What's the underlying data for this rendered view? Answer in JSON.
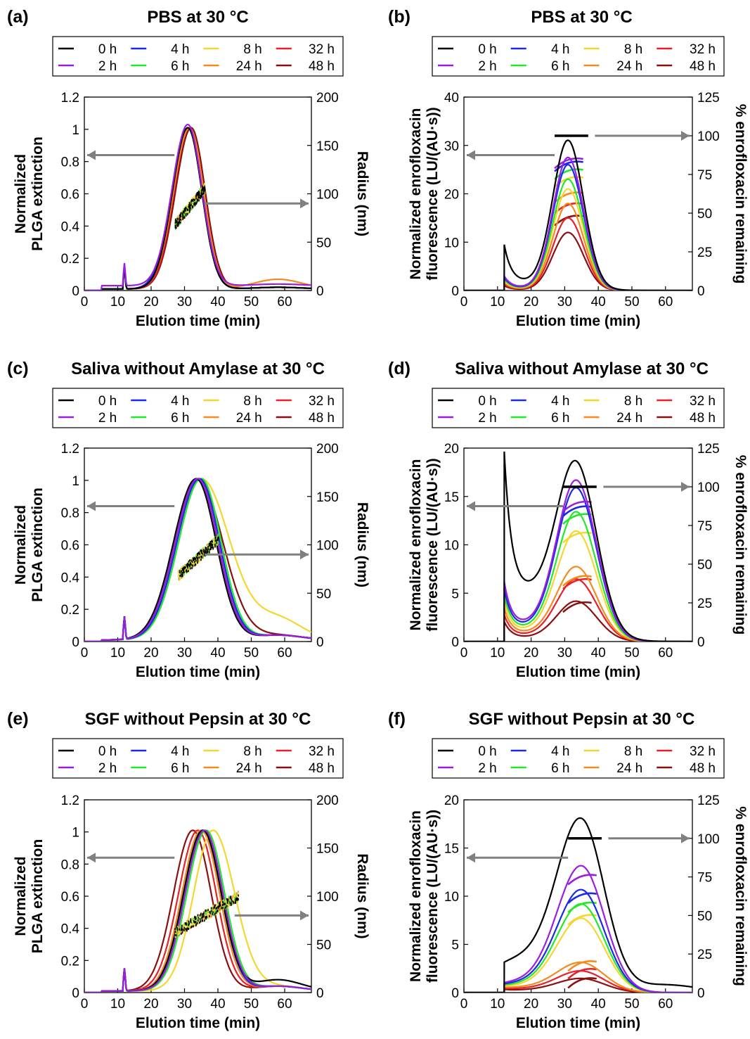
{
  "figure": {
    "legend": {
      "items": [
        "0 h",
        "4 h",
        "8 h",
        "32 h",
        "2 h",
        "6 h",
        "24 h",
        "48 h"
      ]
    },
    "colors": {
      "0 h": "#000000",
      "2 h": "#9a1ee0",
      "4 h": "#1a2ae8",
      "6 h": "#22e82a",
      "8 h": "#f5d630",
      "24 h": "#f58a1e",
      "32 h": "#e8202a",
      "48 h": "#8a1010"
    }
  },
  "chart_data": [
    {
      "panel": "(a)",
      "type": "line",
      "title": "PBS at 30 °C",
      "xlabel": "Elution time (min)",
      "ylabel": [
        "Normalized",
        "PLGA extinction"
      ],
      "y2label": "Radius (nm)",
      "xlim": [
        0,
        68
      ],
      "xticks": [
        0,
        10,
        20,
        30,
        40,
        50,
        60
      ],
      "ylim": [
        0,
        1.2
      ],
      "yticks": [
        0,
        0.2,
        0.4,
        0.6,
        0.8,
        1,
        1.2
      ],
      "y2lim": [
        0,
        200
      ],
      "y2ticks": [
        0,
        50,
        100,
        150,
        200
      ],
      "peak_x": [
        31,
        31,
        31,
        31,
        31,
        31.5,
        31.5,
        32
      ],
      "series_labels": [
        "0 h",
        "2 h",
        "4 h",
        "6 h",
        "8 h",
        "24 h",
        "32 h",
        "48 h"
      ],
      "radius_nm_range": [
        65,
        110
      ],
      "radius_x_range": [
        27,
        36
      ],
      "arrows": {
        "left": {
          "x": 28,
          "y": 0.84,
          "points": "left-axis"
        },
        "right": {
          "x": 38,
          "y": 0.54,
          "points": "right-axis"
        }
      }
    },
    {
      "panel": "(b)",
      "type": "line",
      "title": "PBS at 30 °C",
      "xlabel": "Elution time (min)",
      "ylabel": [
        "Normalized enrofloxacin",
        "fluorescence (LU/(AU·s))"
      ],
      "y2label": "% enrofloxacin remaining",
      "xlim": [
        0,
        68
      ],
      "xticks": [
        0,
        10,
        20,
        30,
        40,
        50,
        60
      ],
      "ylim": [
        0,
        40
      ],
      "yticks": [
        0,
        10,
        20,
        30,
        40
      ],
      "y2lim": [
        0,
        125
      ],
      "y2ticks": [
        0,
        25,
        50,
        75,
        100,
        125
      ],
      "series_labels": [
        "0 h",
        "2 h",
        "4 h",
        "6 h",
        "8 h",
        "24 h",
        "32 h",
        "48 h"
      ],
      "peak_heights": [
        31,
        27.5,
        26,
        23,
        21,
        18,
        15,
        12
      ],
      "percent_remaining": [
        100,
        85,
        83,
        78,
        73,
        63,
        56,
        48
      ]
    },
    {
      "panel": "(c)",
      "type": "line",
      "title": "Saliva without Amylase at 30 °C",
      "xlabel": "Elution time (min)",
      "ylabel": [
        "Normalized",
        "PLGA extinction"
      ],
      "y2label": "Radius (nm)",
      "xlim": [
        0,
        68
      ],
      "xticks": [
        0,
        10,
        20,
        30,
        40,
        50,
        60
      ],
      "ylim": [
        0,
        1.2
      ],
      "yticks": [
        0,
        0.2,
        0.4,
        0.6,
        0.8,
        1,
        1.2
      ],
      "y2lim": [
        0,
        200
      ],
      "y2ticks": [
        0,
        50,
        100,
        150,
        200
      ],
      "series_labels": [
        "0 h",
        "2 h",
        "4 h",
        "6 h",
        "8 h",
        "24 h",
        "32 h",
        "48 h"
      ],
      "peak_x": [
        33.5,
        34,
        34.5,
        35,
        35,
        34,
        34,
        34
      ]
    },
    {
      "panel": "(d)",
      "type": "line",
      "title": "Saliva without Amylase at 30 °C",
      "xlabel": "Elution time (min)",
      "ylabel": [
        "Normalized enrofloxacin",
        "fluorescence (LU/(AU·s))"
      ],
      "y2label": "% enrofloxacin remaining",
      "xlim": [
        0,
        68
      ],
      "xticks": [
        0,
        10,
        20,
        30,
        40,
        50,
        60
      ],
      "ylim": [
        0,
        20
      ],
      "yticks": [
        0,
        5,
        10,
        15,
        20
      ],
      "y2lim": [
        0,
        125
      ],
      "y2ticks": [
        0,
        25,
        50,
        75,
        100,
        125
      ],
      "series_labels": [
        "0 h",
        "2 h",
        "4 h",
        "6 h",
        "8 h",
        "24 h",
        "32 h",
        "48 h"
      ],
      "peak_heights": [
        19,
        16.8,
        16,
        13.5,
        11.5,
        7.8,
        6.5,
        4.2
      ],
      "percent_remaining": [
        100,
        90,
        87,
        82,
        70,
        42,
        40,
        25
      ]
    },
    {
      "panel": "(e)",
      "type": "line",
      "title": "SGF without Pepsin at 30 °C",
      "xlabel": "Elution time (min)",
      "ylabel": [
        "Normalized",
        "PLGA extinction"
      ],
      "y2label": "Radius (nm)",
      "xlim": [
        0,
        68
      ],
      "xticks": [
        0,
        10,
        20,
        30,
        40,
        50,
        60
      ],
      "ylim": [
        0,
        1.2
      ],
      "yticks": [
        0,
        0.2,
        0.4,
        0.6,
        0.8,
        1,
        1.2
      ],
      "y2lim": [
        0,
        200
      ],
      "y2ticks": [
        0,
        50,
        100,
        150,
        200
      ],
      "series_labels": [
        "0 h",
        "2 h",
        "4 h",
        "6 h",
        "8 h",
        "24 h",
        "32 h",
        "48 h"
      ],
      "peak_x": [
        35.5,
        36,
        35.5,
        36.5,
        38.5,
        35,
        34,
        32.5
      ]
    },
    {
      "panel": "(f)",
      "type": "line",
      "title": "SGF without Pepsin at 30 °C",
      "xlabel": "Elution time (min)",
      "ylabel": [
        "Normalized enrofloxacin",
        "fluorescence (LU/(AU·s))"
      ],
      "y2label": "% enrofloxacin remaining",
      "xlim": [
        0,
        68
      ],
      "xticks": [
        0,
        10,
        20,
        30,
        40,
        50,
        60
      ],
      "ylim": [
        0,
        20
      ],
      "yticks": [
        0,
        5,
        10,
        15,
        20
      ],
      "y2lim": [
        0,
        125
      ],
      "y2ticks": [
        0,
        25,
        50,
        75,
        100,
        125
      ],
      "series_labels": [
        "0 h",
        "2 h",
        "4 h",
        "6 h",
        "8 h",
        "24 h",
        "32 h",
        "48 h"
      ],
      "peak_heights": [
        18.5,
        13.3,
        10.8,
        9.3,
        7.8,
        3.2,
        2.3,
        1.5
      ],
      "percent_remaining": [
        100,
        76,
        64,
        58,
        50,
        20,
        15,
        9
      ]
    }
  ]
}
